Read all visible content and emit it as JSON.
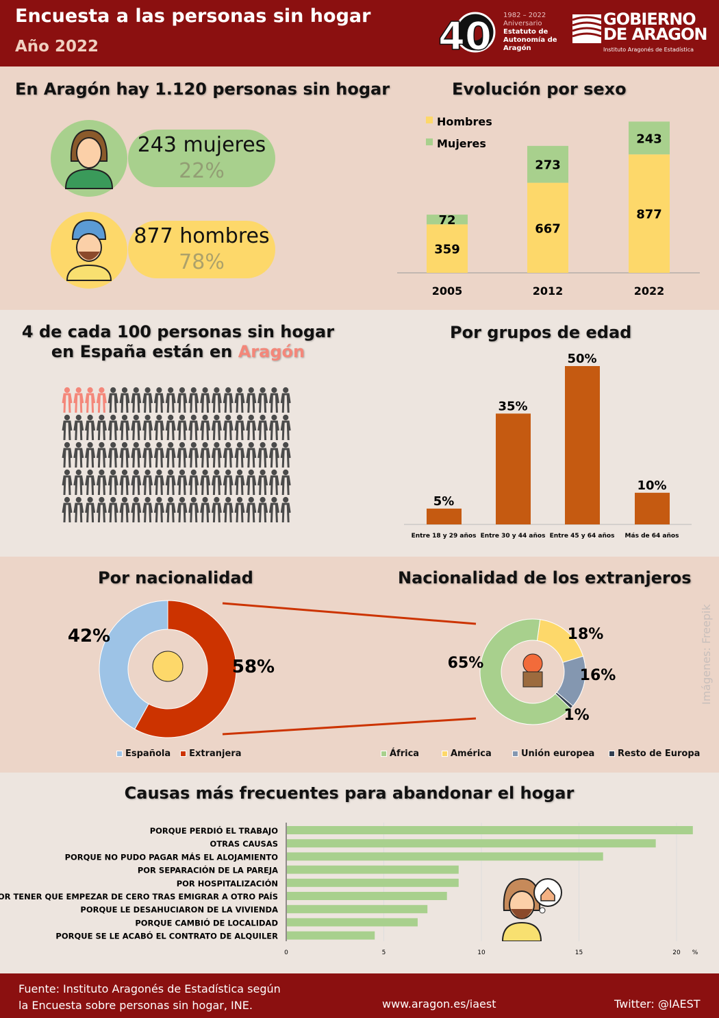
{
  "header": {
    "title": "Encuesta a las personas sin hogar",
    "subtitle": "Año 2022",
    "anniversary": {
      "years": "1982 – 2022",
      "line1": "Aniversario",
      "line2": "Estatuto de",
      "line3": "Autonomía de",
      "line4": "Aragón",
      "logo_number": "40"
    },
    "gov_logo": {
      "line1": "GOBIERNO",
      "line2": "DE ARAGON",
      "institute": "Instituto Aragonés de Estadística"
    }
  },
  "summary": {
    "title": "En Aragón hay 1.120 personas sin hogar",
    "women": {
      "label": "243 mujeres",
      "pct": "22%"
    },
    "men": {
      "label": "877 hombres",
      "pct": "78%"
    }
  },
  "share": {
    "title_line1": "4 de cada 100 personas sin hogar",
    "title_line2_prefix": "en España están en ",
    "title_highlight": "Aragón",
    "highlighted_count": 4,
    "total_count": 100
  },
  "colors": {
    "header": "#8b1010",
    "hombres": "#fdd86a",
    "mujeres": "#a8d08d",
    "age": "#c55a11",
    "espanola": "#9dc3e6",
    "extranjera": "#cc3300",
    "africa": "#a8d08d",
    "america": "#fdd86a",
    "ue": "#8497b0",
    "resto": "#333f50",
    "highlight": "#f4877a"
  },
  "chart_data": [
    {
      "type": "bar",
      "stacked": true,
      "title": "Evolución por sexo",
      "categories": [
        "2005",
        "2012",
        "2022"
      ],
      "series": [
        {
          "name": "Hombres",
          "values": [
            359,
            667,
            877
          ]
        },
        {
          "name": "Mujeres",
          "values": [
            72,
            273,
            243
          ]
        }
      ],
      "legend": "top-left"
    },
    {
      "type": "bar",
      "title": "Por grupos de edad",
      "categories": [
        "Entre 18 y 29 años",
        "Entre 30 y 44 años",
        "Entre 45 y 64 años",
        "Más de 64 años"
      ],
      "values": [
        5,
        35,
        50,
        10
      ],
      "labels": [
        "5%",
        "35%",
        "50%",
        "10%"
      ]
    },
    {
      "type": "pie",
      "donut": true,
      "title": "Por nacionalidad",
      "categories": [
        "Española",
        "Extranjera"
      ],
      "values": [
        42,
        58
      ],
      "labels": [
        "42%",
        "58%"
      ],
      "legend": "bottom"
    },
    {
      "type": "pie",
      "donut": true,
      "title": "Nacionalidad de los extranjeros",
      "categories": [
        "África",
        "América",
        "Unión europea",
        "Resto de Europa"
      ],
      "values": [
        65,
        18,
        16,
        1
      ],
      "labels": [
        "65%",
        "18%",
        "16%",
        "1%"
      ],
      "legend": "bottom"
    },
    {
      "type": "bar",
      "orientation": "horizontal",
      "title": "Causas más frecuentes para abandonar el hogar",
      "categories": [
        "PORQUE PERDIÓ EL TRABAJO",
        "OTRAS CAUSAS",
        "PORQUE NO PUDO PAGAR MÁS EL ALOJAMIENTO",
        "POR SEPARACIÓN DE LA PAREJA",
        "POR HOSPITALIZACIÓN",
        "POR TENER QUE EMPEZAR DE CERO TRAS EMIGRAR A OTRO PAÍS",
        "PORQUE LE DESAHUCIARON DE LA VIVIENDA",
        "PORQUE CAMBIÓ DE LOCALIDAD",
        "PORQUE SE LE ACABÓ EL CONTRATO DE ALQUILER"
      ],
      "values": [
        20.8,
        18.9,
        16.2,
        8.8,
        8.8,
        8.2,
        7.2,
        6.7,
        4.5
      ],
      "xticks": [
        "0",
        "5",
        "10",
        "15",
        "20"
      ],
      "xunit": "%",
      "xlim": [
        0,
        21
      ],
      "grid": true
    }
  ],
  "credit": "Imágenes: Freepik",
  "footer": {
    "source_line1": "Fuente: Instituto Aragonés de Estadística según",
    "source_line2": "la Encuesta sobre personas sin hogar, INE.",
    "website": "www.aragon.es/iaest",
    "twitter": "Twitter:  @IAEST"
  }
}
